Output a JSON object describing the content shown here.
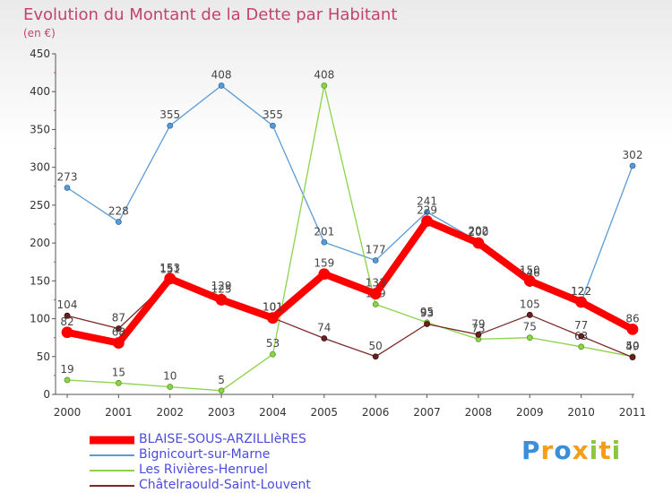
{
  "chart_data": {
    "type": "line",
    "title": "Evolution du Montant de la Dette par Habitant",
    "subtitle": "(en €)",
    "xlabel": "",
    "ylabel": "",
    "x": [
      "2000",
      "2001",
      "2002",
      "2003",
      "2004",
      "2005",
      "2006",
      "2007",
      "2008",
      "2009",
      "2010",
      "2011"
    ],
    "ylim": [
      0,
      450
    ],
    "yticks": [
      0,
      50,
      100,
      150,
      200,
      250,
      300,
      350,
      400,
      450
    ],
    "grid": false,
    "legend_position": "bottom-left",
    "series": [
      {
        "name": "Bignicourt-sur-Marne",
        "color": "#5b9bd5",
        "values": [
          273,
          228,
          355,
          408,
          355,
          201,
          177,
          241,
          202,
          146,
          122,
          302
        ],
        "labels": [
          "273",
          "228",
          "355",
          "408",
          "355",
          "201",
          "177",
          "241",
          "202",
          "146",
          "122",
          "302"
        ]
      },
      {
        "name": "Les Rivières-Henruel",
        "color": "#8cd34a",
        "values": [
          19,
          15,
          10,
          5,
          53,
          408,
          119,
          95,
          73,
          75,
          63,
          50
        ],
        "labels": [
          "19",
          "15",
          "10",
          "5",
          "53",
          "408",
          "119",
          "95",
          "73",
          "75",
          "63",
          "50"
        ]
      },
      {
        "name": "Châtelraould-Saint-Louvent",
        "color": "#7b2a2a",
        "values": [
          104,
          87,
          151,
          129,
          101,
          74,
          50,
          93,
          79,
          105,
          77,
          49
        ],
        "labels": [
          "104",
          "87",
          "151",
          "129",
          "101",
          "74",
          "50",
          "93",
          "79",
          "105",
          "77",
          "49"
        ]
      },
      {
        "name": "BLAISE-SOUS-ARZILLIèRES",
        "color": "#ff0000",
        "values": [
          82,
          68,
          153,
          125,
          101,
          159,
          133,
          229,
          200,
          150,
          122,
          86
        ],
        "labels": [
          "82",
          "68",
          "153",
          "125",
          "101",
          "159",
          "133",
          "229",
          "200",
          "150",
          "122",
          "86"
        ]
      }
    ],
    "legend_order": [
      "BLAISE-SOUS-ARZILLIèRES",
      "Bignicourt-sur-Marne",
      "Les Rivières-Henruel",
      "Châtelraould-Saint-Louvent"
    ]
  },
  "logo": {
    "text": "Proxiti"
  }
}
